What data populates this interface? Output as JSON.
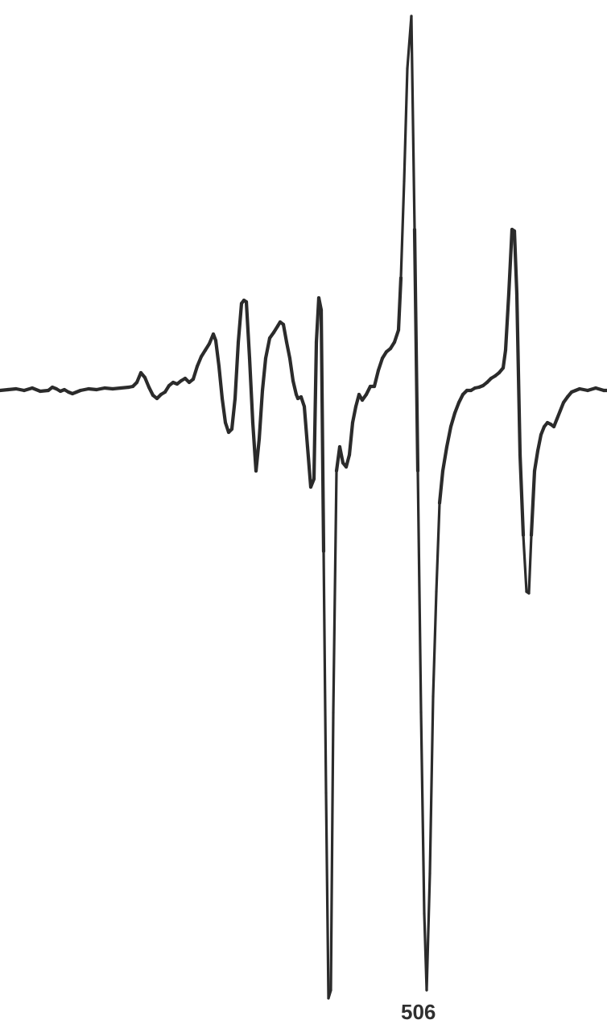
{
  "chart_data": {
    "type": "line",
    "title": "",
    "xlabel": "",
    "ylabel": "",
    "grid": false,
    "legend": "none",
    "xlim": [
      0,
      754
    ],
    "ylim": [
      -760,
      470
    ],
    "series": [
      {
        "values": [
          [
            0,
            0
          ],
          [
            10,
            1
          ],
          [
            20,
            2
          ],
          [
            30,
            0
          ],
          [
            40,
            3
          ],
          [
            50,
            -1
          ],
          [
            60,
            0
          ],
          [
            65,
            4
          ],
          [
            70,
            2
          ],
          [
            75,
            -1
          ],
          [
            80,
            1
          ],
          [
            85,
            -2
          ],
          [
            90,
            -4
          ],
          [
            95,
            -2
          ],
          [
            100,
            0
          ],
          [
            110,
            2
          ],
          [
            120,
            1
          ],
          [
            130,
            3
          ],
          [
            140,
            2
          ],
          [
            150,
            3
          ],
          [
            160,
            4
          ],
          [
            165,
            5
          ],
          [
            170,
            10
          ],
          [
            175,
            22
          ],
          [
            180,
            16
          ],
          [
            185,
            4
          ],
          [
            190,
            -6
          ],
          [
            195,
            -10
          ],
          [
            200,
            -5
          ],
          [
            205,
            -2
          ],
          [
            210,
            6
          ],
          [
            215,
            10
          ],
          [
            220,
            8
          ],
          [
            225,
            12
          ],
          [
            230,
            15
          ],
          [
            235,
            10
          ],
          [
            240,
            14
          ],
          [
            245,
            30
          ],
          [
            250,
            42
          ],
          [
            255,
            50
          ],
          [
            260,
            58
          ],
          [
            265,
            70
          ],
          [
            268,
            62
          ],
          [
            272,
            30
          ],
          [
            276,
            -10
          ],
          [
            280,
            -40
          ],
          [
            284,
            -52
          ],
          [
            288,
            -48
          ],
          [
            292,
            -10
          ],
          [
            296,
            60
          ],
          [
            300,
            108
          ],
          [
            303,
            112
          ],
          [
            306,
            110
          ],
          [
            310,
            40
          ],
          [
            314,
            -40
          ],
          [
            318,
            -100
          ],
          [
            322,
            -60
          ],
          [
            326,
            0
          ],
          [
            330,
            40
          ],
          [
            335,
            65
          ],
          [
            340,
            72
          ],
          [
            345,
            80
          ],
          [
            348,
            85
          ],
          [
            352,
            82
          ],
          [
            356,
            60
          ],
          [
            360,
            40
          ],
          [
            364,
            12
          ],
          [
            368,
            -5
          ],
          [
            370,
            -10
          ],
          [
            374,
            -8
          ],
          [
            378,
            -20
          ],
          [
            382,
            -70
          ],
          [
            386,
            -120
          ],
          [
            390,
            -110
          ],
          [
            393,
            60
          ],
          [
            396,
            115
          ],
          [
            399,
            100
          ],
          [
            402,
            -200
          ],
          [
            405,
            -500
          ],
          [
            408,
            -755
          ],
          [
            411,
            -745
          ],
          [
            414,
            -400
          ],
          [
            418,
            -100
          ],
          [
            422,
            -70
          ],
          [
            426,
            -90
          ],
          [
            430,
            -95
          ],
          [
            434,
            -80
          ],
          [
            438,
            -40
          ],
          [
            442,
            -20
          ],
          [
            446,
            -5
          ],
          [
            450,
            -12
          ],
          [
            455,
            -5
          ],
          [
            460,
            5
          ],
          [
            465,
            5
          ],
          [
            470,
            25
          ],
          [
            475,
            40
          ],
          [
            480,
            48
          ],
          [
            485,
            52
          ],
          [
            490,
            60
          ],
          [
            495,
            75
          ],
          [
            498,
            140
          ],
          [
            502,
            260
          ],
          [
            506,
            400
          ],
          [
            511,
            465
          ],
          [
            515,
            200
          ],
          [
            519,
            -100
          ],
          [
            523,
            -400
          ],
          [
            527,
            -650
          ],
          [
            530,
            -745
          ],
          [
            534,
            -600
          ],
          [
            538,
            -380
          ],
          [
            542,
            -250
          ],
          [
            546,
            -140
          ],
          [
            550,
            -100
          ],
          [
            555,
            -70
          ],
          [
            560,
            -45
          ],
          [
            565,
            -28
          ],
          [
            570,
            -15
          ],
          [
            575,
            -5
          ],
          [
            580,
            0
          ],
          [
            585,
            0
          ],
          [
            590,
            3
          ],
          [
            595,
            4
          ],
          [
            600,
            6
          ],
          [
            605,
            10
          ],
          [
            610,
            15
          ],
          [
            615,
            18
          ],
          [
            620,
            22
          ],
          [
            625,
            28
          ],
          [
            628,
            50
          ],
          [
            632,
            120
          ],
          [
            636,
            200
          ],
          [
            639,
            198
          ],
          [
            642,
            120
          ],
          [
            646,
            -80
          ],
          [
            650,
            -180
          ],
          [
            654,
            -250
          ],
          [
            657,
            -252
          ],
          [
            660,
            -180
          ],
          [
            664,
            -100
          ],
          [
            668,
            -75
          ],
          [
            672,
            -55
          ],
          [
            676,
            -45
          ],
          [
            680,
            -40
          ],
          [
            684,
            -42
          ],
          [
            688,
            -45
          ],
          [
            692,
            -35
          ],
          [
            696,
            -25
          ],
          [
            700,
            -15
          ],
          [
            705,
            -8
          ],
          [
            710,
            -2
          ],
          [
            715,
            0
          ],
          [
            720,
            2
          ],
          [
            730,
            0
          ],
          [
            740,
            3
          ],
          [
            750,
            0
          ],
          [
            754,
            0
          ]
        ]
      }
    ]
  },
  "labels": {
    "bottom_partial": "506"
  }
}
